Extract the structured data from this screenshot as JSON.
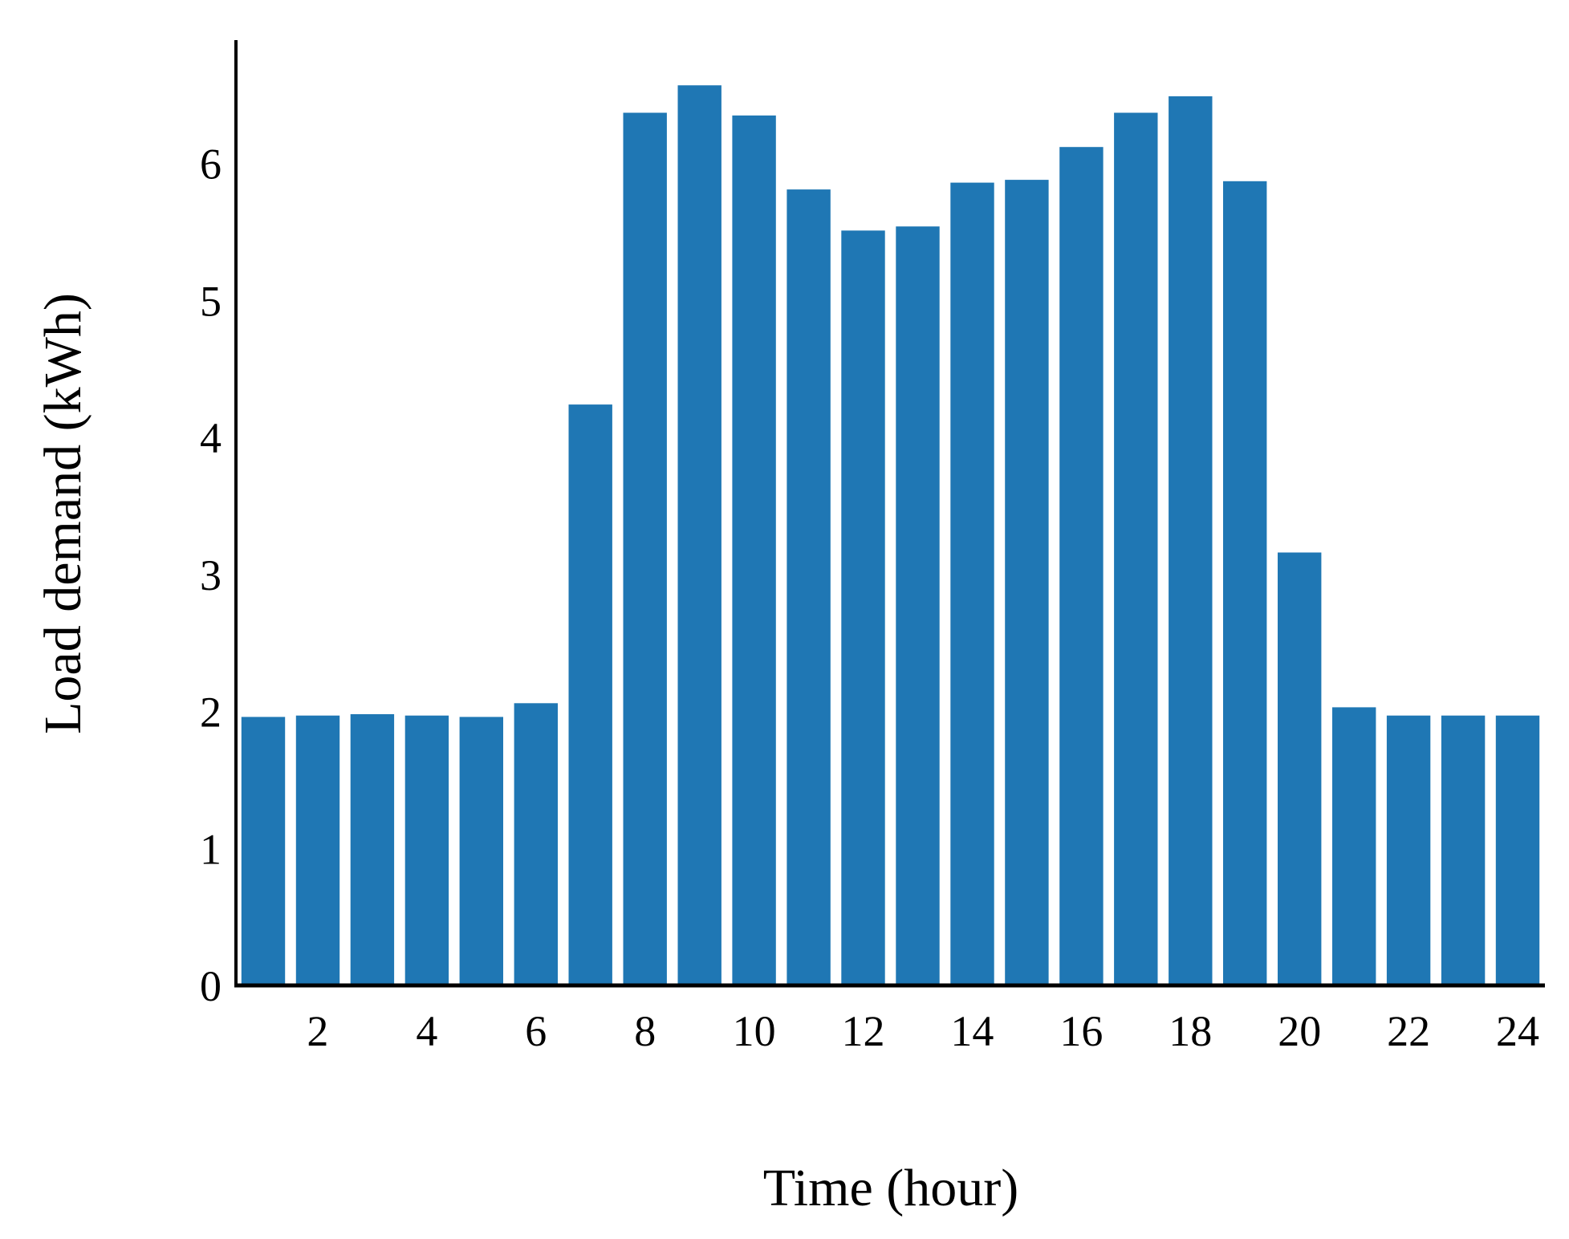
{
  "chart_data": {
    "type": "bar",
    "title": "",
    "xlabel": "Time (hour)",
    "ylabel": "Load demand (kWh)",
    "categories": [
      1,
      2,
      3,
      4,
      5,
      6,
      7,
      8,
      9,
      10,
      11,
      12,
      13,
      14,
      15,
      16,
      17,
      18,
      19,
      20,
      21,
      22,
      23,
      24
    ],
    "values": [
      1.96,
      1.97,
      1.98,
      1.97,
      1.96,
      2.06,
      4.24,
      6.37,
      6.57,
      6.35,
      5.81,
      5.51,
      5.54,
      5.86,
      5.88,
      6.12,
      6.37,
      6.49,
      5.87,
      3.16,
      2.03,
      1.97,
      1.97,
      1.97
    ],
    "xticks": [
      2,
      4,
      6,
      8,
      10,
      12,
      14,
      16,
      18,
      20,
      22,
      24
    ],
    "yticks": [
      0,
      1,
      2,
      3,
      4,
      5,
      6
    ],
    "ylim": [
      0,
      6.9
    ],
    "xlim": [
      0.5,
      24.5
    ],
    "bar_color": "#1f77b4",
    "grid": false,
    "legend": "none"
  }
}
